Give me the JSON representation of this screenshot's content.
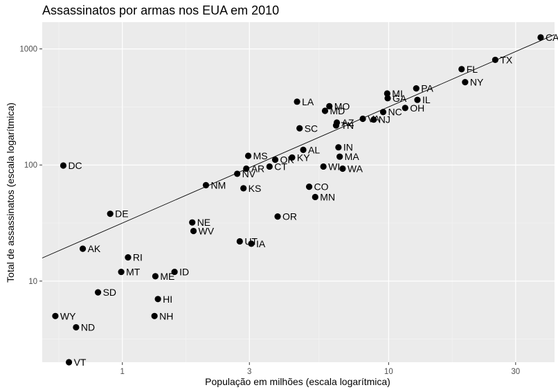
{
  "chart_data": {
    "type": "scatter",
    "title": "Assassinatos por armas nos EUA em 2010",
    "xlabel": "População em milhões (escala logarítmica)",
    "ylabel": "Total de assassinatos (escala logarítmica)",
    "x_scale": "log10",
    "y_scale": "log10",
    "xlim": [
      0.5,
      42
    ],
    "ylim": [
      2.0,
      1700
    ],
    "x_ticks": [
      {
        "value": 1,
        "label": "1"
      },
      {
        "value": 3,
        "label": "3"
      },
      {
        "value": 10,
        "label": "10"
      },
      {
        "value": 30,
        "label": "30"
      }
    ],
    "y_ticks": [
      {
        "value": 10,
        "label": "10"
      },
      {
        "value": 100,
        "label": "100"
      },
      {
        "value": 1000,
        "label": "1000"
      }
    ],
    "grid": true,
    "background": "#ebebeb",
    "point_color": "#000000",
    "trend_line": {
      "intercept_log10": 1.5,
      "slope_log10": 1.0
    },
    "points": [
      {
        "label": "CA",
        "x": 37.25,
        "y": 1257
      },
      {
        "label": "TX",
        "x": 25.15,
        "y": 805
      },
      {
        "label": "FL",
        "x": 18.8,
        "y": 669
      },
      {
        "label": "NY",
        "x": 19.38,
        "y": 517
      },
      {
        "label": "PA",
        "x": 12.7,
        "y": 457
      },
      {
        "label": "MI",
        "x": 9.88,
        "y": 413
      },
      {
        "label": "GA",
        "x": 9.92,
        "y": 376
      },
      {
        "label": "IL",
        "x": 12.83,
        "y": 364
      },
      {
        "label": "LA",
        "x": 4.53,
        "y": 351
      },
      {
        "label": "MO",
        "x": 5.99,
        "y": 321
      },
      {
        "label": "OH",
        "x": 11.54,
        "y": 310
      },
      {
        "label": "MD",
        "x": 5.77,
        "y": 293
      },
      {
        "label": "NC",
        "x": 9.54,
        "y": 286
      },
      {
        "label": "VA",
        "x": 8.0,
        "y": 250
      },
      {
        "label": "NJ",
        "x": 8.79,
        "y": 246
      },
      {
        "label": "AZ",
        "x": 6.39,
        "y": 232
      },
      {
        "label": "TN",
        "x": 6.35,
        "y": 219
      },
      {
        "label": "SC",
        "x": 4.63,
        "y": 207
      },
      {
        "label": "IN",
        "x": 6.48,
        "y": 142
      },
      {
        "label": "AL",
        "x": 4.78,
        "y": 135
      },
      {
        "label": "MS",
        "x": 2.97,
        "y": 120
      },
      {
        "label": "MA",
        "x": 6.55,
        "y": 118
      },
      {
        "label": "KY",
        "x": 4.34,
        "y": 116
      },
      {
        "label": "OK",
        "x": 3.75,
        "y": 111
      },
      {
        "label": "WI",
        "x": 5.69,
        "y": 97
      },
      {
        "label": "CT",
        "x": 3.57,
        "y": 97
      },
      {
        "label": "WA",
        "x": 6.72,
        "y": 93
      },
      {
        "label": "AR",
        "x": 2.92,
        "y": 93
      },
      {
        "label": "NV",
        "x": 2.7,
        "y": 84
      },
      {
        "label": "DC",
        "x": 0.6,
        "y": 99
      },
      {
        "label": "NM",
        "x": 2.06,
        "y": 67
      },
      {
        "label": "CO",
        "x": 5.03,
        "y": 65
      },
      {
        "label": "KS",
        "x": 2.85,
        "y": 63
      },
      {
        "label": "MN",
        "x": 5.3,
        "y": 53
      },
      {
        "label": "DE",
        "x": 0.9,
        "y": 38
      },
      {
        "label": "OR",
        "x": 3.83,
        "y": 36
      },
      {
        "label": "NE",
        "x": 1.83,
        "y": 32
      },
      {
        "label": "WV",
        "x": 1.85,
        "y": 27
      },
      {
        "label": "UT",
        "x": 2.76,
        "y": 22
      },
      {
        "label": "IA",
        "x": 3.05,
        "y": 21
      },
      {
        "label": "AK",
        "x": 0.71,
        "y": 19
      },
      {
        "label": "RI",
        "x": 1.05,
        "y": 16
      },
      {
        "label": "MT",
        "x": 0.99,
        "y": 12
      },
      {
        "label": "ID",
        "x": 1.57,
        "y": 12
      },
      {
        "label": "ME",
        "x": 1.33,
        "y": 11
      },
      {
        "label": "SD",
        "x": 0.81,
        "y": 8
      },
      {
        "label": "HI",
        "x": 1.36,
        "y": 7
      },
      {
        "label": "WY",
        "x": 0.56,
        "y": 5
      },
      {
        "label": "NH",
        "x": 1.32,
        "y": 5
      },
      {
        "label": "ND",
        "x": 0.67,
        "y": 4
      },
      {
        "label": "VT",
        "x": 0.63,
        "y": 2
      }
    ]
  }
}
